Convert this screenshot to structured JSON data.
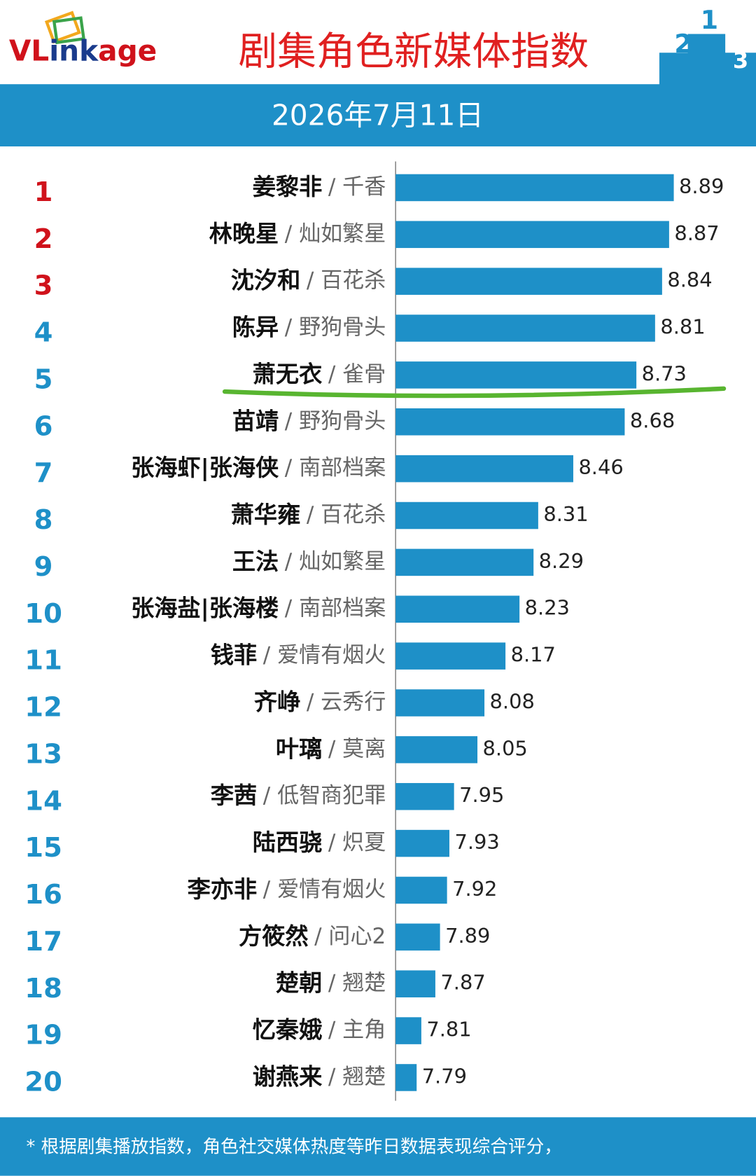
{
  "chart_data": {
    "type": "bar",
    "orientation": "horizontal",
    "logo": [
      "VL",
      "ink",
      "age"
    ],
    "title": "剧集角色新媒体指数",
    "subtitle": "2026年7月11日",
    "ranks": [
      1,
      2,
      3,
      4,
      5,
      6,
      7,
      8,
      9,
      10,
      11,
      12,
      13,
      14,
      15,
      16,
      17,
      18,
      19,
      20
    ],
    "categories": [
      "姜黎非",
      "林晚星",
      "沈汐和",
      "陈异",
      "萧无衣",
      "苗靖",
      "张海虾|张海侠",
      "萧华雍",
      "王法",
      "张海盐|张海楼",
      "钱菲",
      "齐峥",
      "叶璃",
      "李茜",
      "陆西骁",
      "李亦非",
      "方筱然",
      "楚朝",
      "忆秦娥",
      "谢燕来"
    ],
    "dramas": [
      "/ 千香",
      "/ 灿如繁星",
      "/ 百花杀",
      "/ 野狗骨头",
      "/ 雀骨",
      "/ 野狗骨头",
      "/ 南部档案",
      "/ 百花杀",
      "/ 灿如繁星",
      "/ 南部档案",
      "/ 爱情有烟火",
      "/ 云秀行",
      "/ 莫离",
      "/ 低智商犯罪",
      "/ 炽夏",
      "/ 爱情有烟火",
      "/ 问心2",
      "/ 翘楚",
      "/ 主角",
      "/ 翘楚"
    ],
    "values": [
      8.89,
      8.87,
      8.84,
      8.81,
      8.73,
      8.68,
      8.46,
      8.31,
      8.29,
      8.23,
      8.17,
      8.08,
      8.05,
      7.95,
      7.93,
      7.92,
      7.89,
      7.87,
      7.81,
      7.79
    ],
    "xlim": [
      7.7,
      9.2
    ],
    "color": "#1e90c8",
    "top_rank_color": "#d0121b",
    "rank_color": "#1e90c8",
    "footnote": "* 根据剧集播放指数，角色社交媒体热度等昨日数据表现综合评分，"
  }
}
